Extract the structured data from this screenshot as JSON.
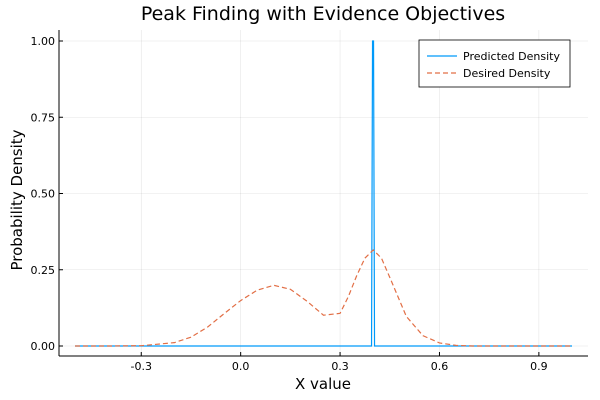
{
  "chart_data": {
    "type": "line",
    "title": "Peak Finding with Evidence Objectives",
    "xlabel": "X value",
    "ylabel": "Probability Density",
    "xlim": [
      -0.5,
      1.0
    ],
    "ylim": [
      0.0,
      1.0
    ],
    "xticks": [
      -0.3,
      0.0,
      0.3,
      0.6,
      0.9
    ],
    "xtick_labels": [
      "-0.3",
      "0.0",
      "0.3",
      "0.6",
      "0.9"
    ],
    "yticks": [
      0.0,
      0.25,
      0.5,
      0.75,
      1.0
    ],
    "ytick_labels": [
      "0.00",
      "0.25",
      "0.50",
      "0.75",
      "1.00"
    ],
    "grid": true,
    "legend_position": "top-right",
    "series": [
      {
        "name": "Predicted Density",
        "color": "#009AFA",
        "style": "solid",
        "x": [
          -0.5,
          0.395,
          0.398,
          0.401,
          0.404,
          1.0
        ],
        "y": [
          0.0,
          0.0,
          1.0,
          1.0,
          0.0,
          0.0
        ]
      },
      {
        "name": "Desired Density",
        "color": "#E26F46",
        "style": "dashed",
        "x": [
          -0.5,
          -0.4,
          -0.3,
          -0.2,
          -0.15,
          -0.1,
          -0.05,
          0.0,
          0.05,
          0.1,
          0.15,
          0.2,
          0.25,
          0.3,
          0.325,
          0.35,
          0.375,
          0.4,
          0.425,
          0.45,
          0.5,
          0.55,
          0.6,
          0.65,
          0.7,
          0.8,
          0.9,
          1.0
        ],
        "y": [
          0.0,
          0.0,
          0.001,
          0.011,
          0.029,
          0.062,
          0.106,
          0.149,
          0.183,
          0.199,
          0.186,
          0.147,
          0.101,
          0.107,
          0.162,
          0.23,
          0.288,
          0.315,
          0.288,
          0.225,
          0.097,
          0.034,
          0.01,
          0.002,
          0.0,
          0.0,
          0.0,
          0.0
        ]
      }
    ]
  }
}
